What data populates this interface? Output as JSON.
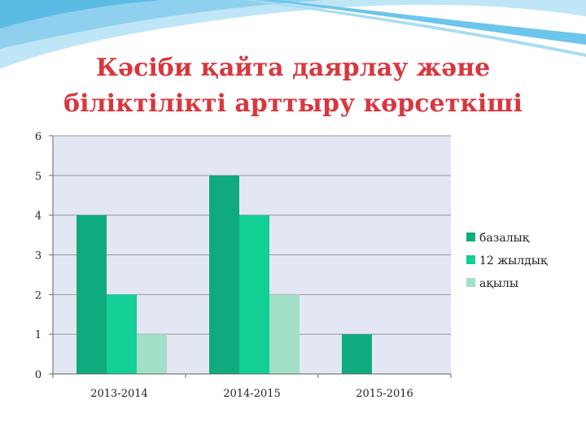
{
  "chart_data": {
    "type": "bar",
    "title_lines": [
      "Кәсіби қайта даярлау және",
      "біліктілікті арттыру көрсеткіші"
    ],
    "categories": [
      "2013-2014",
      "2014-2015",
      "2015-2016"
    ],
    "series": [
      {
        "name": "базалық",
        "color": "#0fab7e",
        "values": [
          4,
          5,
          1
        ]
      },
      {
        "name": "12 жылдық",
        "color": "#12cf96",
        "values": [
          2,
          4,
          0
        ]
      },
      {
        "name": "ақылы",
        "color": "#a2e0c8",
        "values": [
          1,
          2,
          0
        ]
      }
    ],
    "ylim": [
      0,
      6
    ],
    "yticks": [
      0,
      1,
      2,
      3,
      4,
      5,
      6
    ],
    "grid": true,
    "legend_position": "right",
    "plot_background": "#e3e6f3",
    "grid_color": "#999999"
  }
}
